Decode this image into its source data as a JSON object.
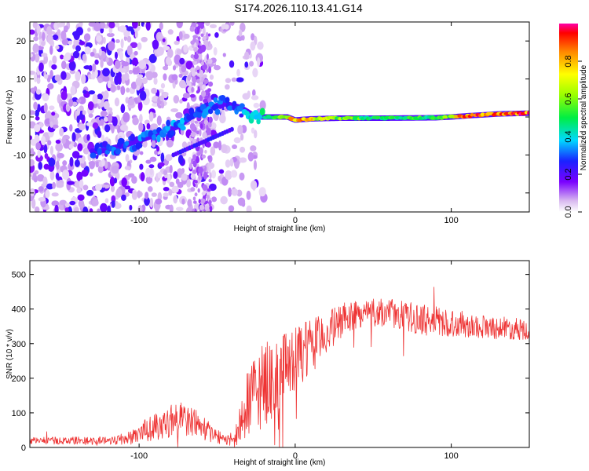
{
  "title": "S174.2026.110.13.41.G14",
  "colors": {
    "snr_line": "#ee3333",
    "spectrogram_base": "#ffffff",
    "axis": "#000000"
  },
  "chart_data": [
    {
      "type": "heatmap",
      "name": "spectrogram",
      "xlabel": "Height of straight line (km)",
      "ylabel": "Frequency (Hz)",
      "xlim": [
        -170,
        150
      ],
      "ylim": [
        -25,
        25
      ],
      "xticks": [
        -100,
        0,
        100
      ],
      "xtick_labels": [
        "-100",
        "0",
        "100"
      ],
      "yticks": [
        -20,
        -10,
        0,
        10,
        20
      ],
      "ytick_labels": [
        "-20",
        "-10",
        "0",
        "10",
        "20"
      ],
      "colorbar": {
        "label": "Normalized spectral amplitude",
        "range": [
          0,
          1
        ],
        "ticks": [
          0.0,
          0.2,
          0.4,
          0.6,
          0.8
        ],
        "tick_labels": [
          "0.0",
          "0.2",
          "0.4",
          "0.6",
          "0.8"
        ],
        "colormap": "rainbow-white"
      },
      "ridge": [
        [
          -125,
          -9
        ],
        [
          -110,
          -7.5
        ],
        [
          -95,
          -5.5
        ],
        [
          -85,
          -4
        ],
        [
          -75,
          -2.5
        ],
        [
          -65,
          0.5
        ],
        [
          -55,
          2.5
        ],
        [
          -45,
          3.5
        ],
        [
          -35,
          2.5
        ],
        [
          -25,
          0
        ],
        [
          -15,
          0
        ],
        [
          -5,
          0
        ],
        [
          0,
          -0.8
        ],
        [
          10,
          -0.5
        ],
        [
          30,
          -0.3
        ],
        [
          60,
          -0.3
        ],
        [
          90,
          -0.2
        ],
        [
          100,
          0
        ],
        [
          110,
          0.3
        ],
        [
          130,
          0.8
        ],
        [
          150,
          1
        ]
      ],
      "ridge_amplitude": [
        [
          -125,
          0.3
        ],
        [
          -80,
          0.35
        ],
        [
          -40,
          0.3
        ],
        [
          -20,
          0.5
        ],
        [
          0,
          0.85
        ],
        [
          30,
          0.6
        ],
        [
          70,
          0.5
        ],
        [
          100,
          0.6
        ],
        [
          110,
          0.95
        ],
        [
          130,
          0.9
        ],
        [
          150,
          0.95
        ]
      ]
    },
    {
      "type": "line",
      "name": "snr",
      "xlabel": "Height of straight line (km)",
      "ylabel": "SNR (10 * v/v)",
      "xlim": [
        -170,
        150
      ],
      "ylim": [
        0,
        540
      ],
      "xticks": [
        -100,
        0,
        100
      ],
      "xtick_labels": [
        "-100",
        "0",
        "100"
      ],
      "yticks": [
        0,
        100,
        200,
        300,
        400,
        500
      ],
      "ytick_labels": [
        "0",
        "100",
        "200",
        "300",
        "400",
        "500"
      ],
      "series": [
        {
          "name": "SNR",
          "envelope_x": [
            -170,
            -120,
            -105,
            -95,
            -85,
            -75,
            -65,
            -55,
            -45,
            -38,
            -32,
            -25,
            -15,
            -5,
            5,
            15,
            25,
            35,
            45,
            60,
            80,
            100,
            120,
            150
          ],
          "envelope_mean": [
            20,
            20,
            28,
            50,
            70,
            85,
            75,
            45,
            20,
            30,
            110,
            160,
            200,
            230,
            270,
            310,
            350,
            380,
            390,
            390,
            370,
            360,
            350,
            340
          ],
          "envelope_spread": [
            10,
            12,
            20,
            35,
            45,
            50,
            45,
            30,
            12,
            30,
            90,
            120,
            120,
            100,
            90,
            70,
            55,
            45,
            40,
            40,
            45,
            40,
            35,
            30
          ]
        }
      ]
    }
  ]
}
